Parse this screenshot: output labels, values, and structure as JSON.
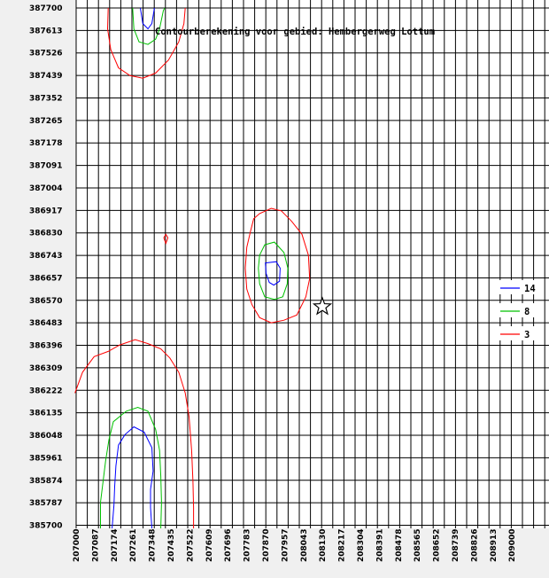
{
  "chart_data": {
    "type": "contour",
    "title": "Contourberekening voor gebied: Hembergerweg Lottum",
    "xlim": [
      207000,
      208913
    ],
    "ylim": [
      385700,
      387700
    ],
    "grid": true,
    "x_ticks": [
      "207000",
      "207087",
      "207174",
      "207261",
      "207348",
      "207435",
      "207522",
      "207609",
      "207696",
      "207783",
      "207870",
      "207957",
      "208043",
      "208130",
      "208217",
      "208304",
      "208391",
      "208478",
      "208565",
      "208652",
      "208739",
      "208826",
      "208913",
      "209000"
    ],
    "y_ticks": [
      "387700",
      "387613",
      "387526",
      "387439",
      "387352",
      "387265",
      "387178",
      "387091",
      "387004",
      "386917",
      "386830",
      "386743",
      "386657",
      "386570",
      "386483",
      "386396",
      "386309",
      "386222",
      "386135",
      "386048",
      "385961",
      "385874",
      "385787",
      "385700"
    ],
    "legend": {
      "placement": "right",
      "items": [
        {
          "label": "14",
          "color": "#0000ff"
        },
        {
          "label": "8",
          "color": "#00c000"
        },
        {
          "label": "3",
          "color": "#ff0000"
        }
      ]
    },
    "marker": {
      "symbol": "star",
      "x": 208043,
      "y": 386570
    },
    "series": [
      {
        "level": 3,
        "color": "#ff0000",
        "closed": false,
        "points": [
          [
            207250,
            387700
          ],
          [
            207245,
            387620
          ],
          [
            207270,
            387540
          ],
          [
            207330,
            387470
          ],
          [
            207420,
            387440
          ],
          [
            207520,
            387430
          ],
          [
            207620,
            387450
          ],
          [
            207720,
            387500
          ],
          [
            207800,
            387570
          ],
          [
            207840,
            387640
          ],
          [
            207850,
            387700
          ]
        ]
      },
      {
        "level": 8,
        "color": "#00c000",
        "closed": false,
        "points": [
          [
            207440,
            387700
          ],
          [
            207450,
            387620
          ],
          [
            207490,
            387570
          ],
          [
            207560,
            387560
          ],
          [
            207620,
            387580
          ],
          [
            207650,
            387620
          ],
          [
            207680,
            387690
          ],
          [
            207690,
            387700
          ]
        ]
      },
      {
        "level": 14,
        "color": "#0000ff",
        "closed": false,
        "points": [
          [
            207500,
            387700
          ],
          [
            207520,
            387640
          ],
          [
            207560,
            387620
          ],
          [
            207590,
            387640
          ],
          [
            207610,
            387700
          ]
        ]
      },
      {
        "level": 3,
        "color": "#ff0000",
        "closed": false,
        "points": [
          [
            206990,
            386220
          ],
          [
            207050,
            386300
          ],
          [
            207140,
            386360
          ],
          [
            207250,
            386380
          ],
          [
            207340,
            386405
          ],
          [
            207460,
            386425
          ],
          [
            207560,
            386410
          ],
          [
            207660,
            386390
          ],
          [
            207730,
            386355
          ],
          [
            207800,
            386300
          ],
          [
            207850,
            386220
          ],
          [
            207880,
            386130
          ],
          [
            207900,
            386000
          ],
          [
            207910,
            385880
          ],
          [
            207915,
            385780
          ],
          [
            207915,
            385700
          ]
        ]
      },
      {
        "level": 8,
        "color": "#00c000",
        "closed": false,
        "points": [
          [
            207190,
            385700
          ],
          [
            207190,
            385800
          ],
          [
            207210,
            385880
          ],
          [
            207230,
            385960
          ],
          [
            207255,
            386040
          ],
          [
            207290,
            386110
          ],
          [
            207390,
            386150
          ],
          [
            207480,
            386165
          ],
          [
            207560,
            386150
          ],
          [
            207620,
            386080
          ],
          [
            207650,
            386000
          ],
          [
            207660,
            385900
          ],
          [
            207665,
            385800
          ],
          [
            207660,
            385700
          ]
        ]
      },
      {
        "level": 14,
        "color": "#0000ff",
        "closed": false,
        "points": [
          [
            207280,
            385700
          ],
          [
            207295,
            385790
          ],
          [
            207300,
            385860
          ],
          [
            207310,
            385940
          ],
          [
            207330,
            386020
          ],
          [
            207380,
            386060
          ],
          [
            207450,
            386090
          ],
          [
            207530,
            386070
          ],
          [
            207590,
            386010
          ],
          [
            207600,
            385920
          ],
          [
            207580,
            385850
          ],
          [
            207580,
            385780
          ],
          [
            207590,
            385700
          ]
        ]
      },
      {
        "level": 3,
        "color": "#ff0000",
        "closed": true,
        "points": [
          [
            208384,
            386890
          ],
          [
            208430,
            386910
          ],
          [
            208520,
            386930
          ],
          [
            208600,
            386920
          ],
          [
            208680,
            386880
          ],
          [
            208760,
            386830
          ],
          [
            208810,
            386750
          ],
          [
            208820,
            386660
          ],
          [
            208790,
            386590
          ],
          [
            208720,
            386520
          ],
          [
            208620,
            386500
          ],
          [
            208520,
            386490
          ],
          [
            208430,
            386510
          ],
          [
            208370,
            386560
          ],
          [
            208330,
            386620
          ],
          [
            208318,
            386700
          ],
          [
            208330,
            386780
          ],
          [
            208358,
            386840
          ]
        ]
      },
      {
        "level": 8,
        "color": "#00c000",
        "closed": true,
        "points": [
          [
            208430,
            386750
          ],
          [
            208470,
            386790
          ],
          [
            208545,
            386800
          ],
          [
            208620,
            386760
          ],
          [
            208650,
            386700
          ],
          [
            208645,
            386640
          ],
          [
            208610,
            386590
          ],
          [
            208545,
            386580
          ],
          [
            208470,
            386590
          ],
          [
            208430,
            386640
          ],
          [
            208420,
            386700
          ]
        ]
      },
      {
        "level": 14,
        "color": "#0000ff",
        "closed": true,
        "points": [
          [
            208475,
            386720
          ],
          [
            208560,
            386725
          ],
          [
            208590,
            386700
          ],
          [
            208585,
            386650
          ],
          [
            208540,
            386635
          ],
          [
            208505,
            386645
          ],
          [
            208480,
            386680
          ]
        ]
      },
      {
        "level": 3,
        "color": "#ff0000",
        "closed": true,
        "points": [
          [
            207699,
            386830
          ],
          [
            207715,
            386817
          ],
          [
            207699,
            386795
          ],
          [
            207683,
            386817
          ]
        ]
      }
    ]
  }
}
